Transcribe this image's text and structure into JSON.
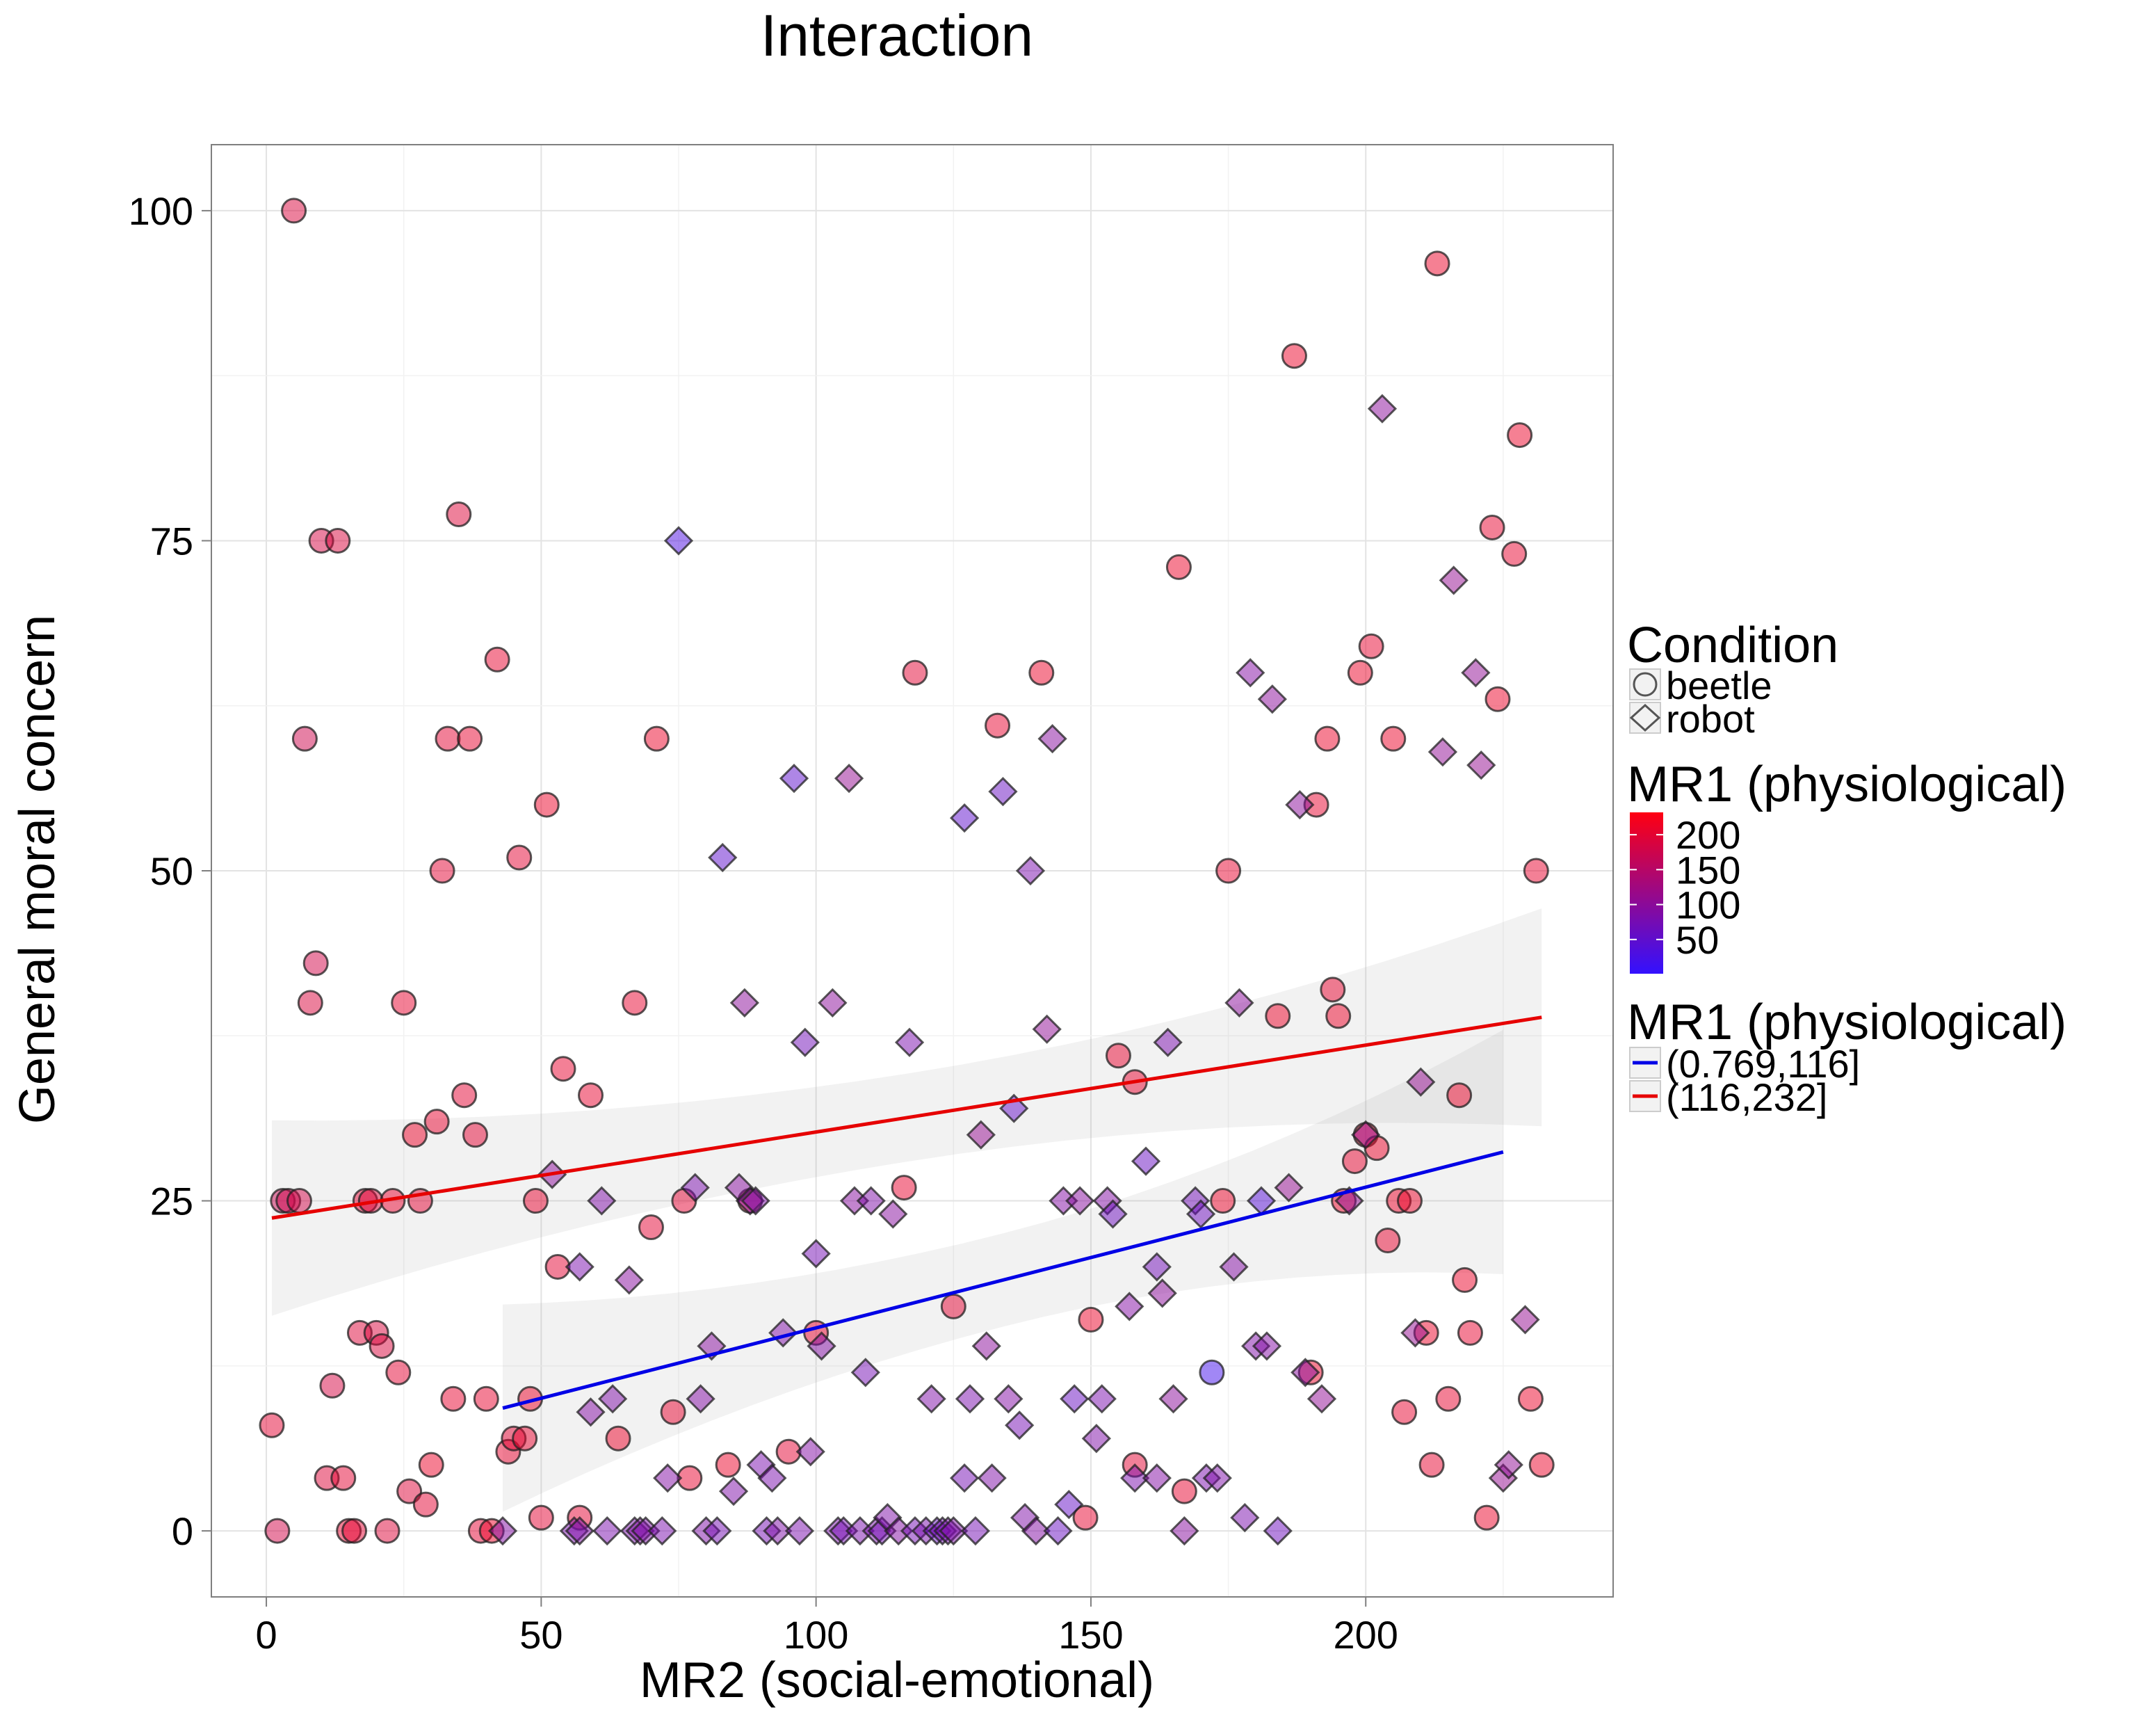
{
  "chart_data": {
    "type": "scatter",
    "title": "Interaction",
    "xlabel": "MR2 (social-emotional)",
    "ylabel": "General moral concern",
    "xlim": [
      -10,
      245
    ],
    "ylim": [
      -5,
      105
    ],
    "xticks": [
      0,
      50,
      100,
      150,
      200
    ],
    "yticks": [
      0,
      25,
      50,
      75,
      100
    ],
    "grid": true,
    "legend_position": "right",
    "legends": {
      "shape": {
        "title": "Condition",
        "entries": [
          {
            "label": "beetle",
            "shape": "circle"
          },
          {
            "label": "robot",
            "shape": "diamond"
          }
        ]
      },
      "color": {
        "title": "MR1 (physiological)",
        "low_color": "#3311ff",
        "high_color": "#ff0011",
        "range": [
          1,
          232
        ],
        "ticks": [
          {
            "label": "200",
            "value": 200
          },
          {
            "label": "150",
            "value": 150
          },
          {
            "label": "100",
            "value": 100
          },
          {
            "label": "50",
            "value": 50
          }
        ]
      },
      "lines": {
        "title": "MR1 (physiological)",
        "entries": [
          {
            "label": "(0.769,116]",
            "color": "#0000e6"
          },
          {
            "label": "(116,232]",
            "color": "#e60000"
          }
        ]
      }
    },
    "series": [
      {
        "name": "beetle",
        "shape": "circle",
        "points": [
          [
            1,
            8,
            200
          ],
          [
            2,
            0,
            180
          ],
          [
            3,
            25,
            170
          ],
          [
            4,
            25,
            175
          ],
          [
            6,
            25,
            180
          ],
          [
            5,
            100,
            190
          ],
          [
            7,
            60,
            175
          ],
          [
            8,
            40,
            190
          ],
          [
            9,
            43,
            180
          ],
          [
            10,
            75,
            185
          ],
          [
            13,
            75,
            190
          ],
          [
            11,
            4,
            195
          ],
          [
            12,
            11,
            185
          ],
          [
            14,
            4,
            200
          ],
          [
            15,
            0,
            205
          ],
          [
            16,
            0,
            200
          ],
          [
            17,
            15,
            195
          ],
          [
            18,
            25,
            200
          ],
          [
            19,
            25,
            195
          ],
          [
            20,
            15,
            190
          ],
          [
            21,
            14,
            190
          ],
          [
            22,
            0,
            195
          ],
          [
            23,
            25,
            205
          ],
          [
            24,
            12,
            200
          ],
          [
            25,
            40,
            205
          ],
          [
            26,
            3,
            195
          ],
          [
            27,
            30,
            210
          ],
          [
            28,
            25,
            200
          ],
          [
            29,
            2,
            200
          ],
          [
            30,
            5,
            210
          ],
          [
            31,
            31,
            205
          ],
          [
            32,
            50,
            200
          ],
          [
            33,
            60,
            200
          ],
          [
            34,
            10,
            205
          ],
          [
            35,
            77,
            195
          ],
          [
            36,
            33,
            200
          ],
          [
            37,
            60,
            205
          ],
          [
            38,
            30,
            200
          ],
          [
            39,
            0,
            200
          ],
          [
            40,
            10,
            205
          ],
          [
            41,
            0,
            210
          ],
          [
            42,
            66,
            205
          ],
          [
            44,
            6,
            205
          ],
          [
            45,
            7,
            200
          ],
          [
            46,
            51,
            200
          ],
          [
            47,
            7,
            205
          ],
          [
            48,
            10,
            210
          ],
          [
            49,
            25,
            205
          ],
          [
            50,
            1,
            200
          ],
          [
            51,
            55,
            210
          ],
          [
            53,
            20,
            200
          ],
          [
            54,
            35,
            205
          ],
          [
            57,
            1,
            200
          ],
          [
            59,
            33,
            205
          ],
          [
            64,
            7,
            210
          ],
          [
            67,
            40,
            205
          ],
          [
            70,
            23,
            200
          ],
          [
            71,
            60,
            210
          ],
          [
            74,
            9,
            205
          ],
          [
            76,
            25,
            200
          ],
          [
            77,
            4,
            205
          ],
          [
            84,
            5,
            210
          ],
          [
            88,
            25,
            205
          ],
          [
            95,
            6,
            200
          ],
          [
            100,
            15,
            205
          ],
          [
            118,
            65,
            200
          ],
          [
            116,
            26,
            205
          ],
          [
            125,
            17,
            200
          ],
          [
            133,
            61,
            205
          ],
          [
            141,
            65,
            210
          ],
          [
            149,
            1,
            205
          ],
          [
            150,
            16,
            210
          ],
          [
            155,
            36,
            205
          ],
          [
            158,
            34,
            205
          ],
          [
            158,
            5,
            200
          ],
          [
            166,
            73,
            210
          ],
          [
            167,
            3,
            205
          ],
          [
            172,
            12,
            20
          ],
          [
            174,
            25,
            210
          ],
          [
            175,
            50,
            205
          ],
          [
            184,
            39,
            210
          ],
          [
            187,
            89,
            210
          ],
          [
            190,
            12,
            210
          ],
          [
            191,
            55,
            205
          ],
          [
            193,
            60,
            210
          ],
          [
            194,
            41,
            205
          ],
          [
            195,
            39,
            210
          ],
          [
            196,
            25,
            210
          ],
          [
            198,
            28,
            205
          ],
          [
            199,
            65,
            210
          ],
          [
            200,
            30,
            210
          ],
          [
            201,
            67,
            205
          ],
          [
            202,
            29,
            210
          ],
          [
            204,
            22,
            205
          ],
          [
            205,
            60,
            210
          ],
          [
            206,
            25,
            210
          ],
          [
            207,
            9,
            205
          ],
          [
            208,
            25,
            210
          ],
          [
            211,
            15,
            210
          ],
          [
            212,
            5,
            205
          ],
          [
            213,
            96,
            210
          ],
          [
            215,
            10,
            205
          ],
          [
            217,
            33,
            210
          ],
          [
            218,
            19,
            210
          ],
          [
            219,
            15,
            205
          ],
          [
            222,
            1,
            210
          ],
          [
            223,
            76,
            205
          ],
          [
            224,
            63,
            210
          ],
          [
            227,
            74,
            205
          ],
          [
            228,
            83,
            210
          ],
          [
            230,
            10,
            210
          ],
          [
            231,
            50,
            205
          ],
          [
            232,
            5,
            210
          ]
        ]
      },
      {
        "name": "robot",
        "shape": "diamond",
        "points": [
          [
            43,
            0,
            90
          ],
          [
            52,
            27,
            100
          ],
          [
            56,
            0,
            80
          ],
          [
            57,
            0,
            85
          ],
          [
            57,
            20,
            80
          ],
          [
            59,
            9,
            90
          ],
          [
            61,
            25,
            85
          ],
          [
            62,
            0,
            80
          ],
          [
            63,
            10,
            85
          ],
          [
            66,
            19,
            95
          ],
          [
            67,
            0,
            80
          ],
          [
            68,
            0,
            90
          ],
          [
            69,
            0,
            85
          ],
          [
            72,
            0,
            80
          ],
          [
            73,
            4,
            90
          ],
          [
            75,
            75,
            30
          ],
          [
            78,
            26,
            80
          ],
          [
            79,
            10,
            90
          ],
          [
            80,
            0,
            85
          ],
          [
            81,
            14,
            95
          ],
          [
            82,
            0,
            75
          ],
          [
            83,
            51,
            50
          ],
          [
            85,
            3,
            85
          ],
          [
            86,
            26,
            95
          ],
          [
            87,
            40,
            100
          ],
          [
            88,
            25,
            90
          ],
          [
            89,
            25,
            85
          ],
          [
            90,
            5,
            80
          ],
          [
            91,
            0,
            75
          ],
          [
            92,
            4,
            80
          ],
          [
            94,
            15,
            85
          ],
          [
            93,
            0,
            85
          ],
          [
            96,
            57,
            50
          ],
          [
            97,
            0,
            80
          ],
          [
            98,
            37,
            70
          ],
          [
            99,
            6,
            90
          ],
          [
            100,
            21,
            75
          ],
          [
            101,
            14,
            90
          ],
          [
            103,
            40,
            100
          ],
          [
            104,
            0,
            80
          ],
          [
            105,
            0,
            75
          ],
          [
            106,
            57,
            110
          ],
          [
            107,
            25,
            95
          ],
          [
            108,
            0,
            80
          ],
          [
            109,
            12,
            75
          ],
          [
            110,
            25,
            85
          ],
          [
            111,
            0,
            80
          ],
          [
            112,
            0,
            75
          ],
          [
            113,
            1,
            85
          ],
          [
            114,
            24,
            95
          ],
          [
            115,
            0,
            90
          ],
          [
            117,
            37,
            80
          ],
          [
            118,
            0,
            75
          ],
          [
            120,
            0,
            80
          ],
          [
            121,
            10,
            85
          ],
          [
            122,
            0,
            60
          ],
          [
            123,
            0,
            75
          ],
          [
            124,
            0,
            80
          ],
          [
            125,
            0,
            85
          ],
          [
            127,
            54,
            50
          ],
          [
            127,
            4,
            75
          ],
          [
            128,
            10,
            80
          ],
          [
            129,
            0,
            75
          ],
          [
            130,
            30,
            110
          ],
          [
            131,
            14,
            100
          ],
          [
            132,
            4,
            85
          ],
          [
            134,
            56,
            60
          ],
          [
            135,
            10,
            90
          ],
          [
            136,
            32,
            55
          ],
          [
            137,
            8,
            75
          ],
          [
            138,
            1,
            85
          ],
          [
            139,
            50,
            80
          ],
          [
            140,
            0,
            90
          ],
          [
            142,
            38,
            105
          ],
          [
            143,
            60,
            95
          ],
          [
            144,
            0,
            60
          ],
          [
            145,
            25,
            90
          ],
          [
            146,
            2,
            55
          ],
          [
            147,
            10,
            60
          ],
          [
            148,
            25,
            95
          ],
          [
            151,
            7,
            85
          ],
          [
            152,
            10,
            80
          ],
          [
            153,
            25,
            90
          ],
          [
            154,
            24,
            65
          ],
          [
            157,
            17,
            90
          ],
          [
            158,
            4,
            80
          ],
          [
            160,
            28,
            60
          ],
          [
            162,
            4,
            90
          ],
          [
            162,
            20,
            70
          ],
          [
            163,
            18,
            100
          ],
          [
            164,
            37,
            80
          ],
          [
            165,
            10,
            100
          ],
          [
            167,
            0,
            95
          ],
          [
            169,
            25,
            70
          ],
          [
            170,
            24,
            65
          ],
          [
            171,
            4,
            80
          ],
          [
            173,
            4,
            85
          ],
          [
            176,
            20,
            90
          ],
          [
            177,
            40,
            100
          ],
          [
            178,
            1,
            80
          ],
          [
            179,
            65,
            90
          ],
          [
            180,
            14,
            85
          ],
          [
            181,
            25,
            40
          ],
          [
            182,
            14,
            90
          ],
          [
            183,
            63,
            100
          ],
          [
            184,
            0,
            65
          ],
          [
            186,
            26,
            110
          ],
          [
            188,
            55,
            100
          ],
          [
            189,
            12,
            95
          ],
          [
            192,
            10,
            105
          ],
          [
            197,
            25,
            105
          ],
          [
            200,
            30,
            110
          ],
          [
            203,
            85,
            100
          ],
          [
            209,
            15,
            110
          ],
          [
            210,
            34,
            110
          ],
          [
            214,
            59,
            105
          ],
          [
            216,
            72,
            110
          ],
          [
            220,
            65,
            105
          ],
          [
            221,
            58,
            110
          ],
          [
            225,
            4,
            110
          ],
          [
            226,
            5,
            105
          ],
          [
            229,
            16,
            110
          ]
        ]
      }
    ],
    "trend_lines": [
      {
        "name": "(0.769,116]",
        "color": "#0000e6",
        "x": [
          43,
          225
        ],
        "y": [
          9.3,
          28.7
        ],
        "band_lower": [
          1.5,
          19.5
        ],
        "band_upper": [
          17.2,
          38.0
        ]
      },
      {
        "name": "(116,232]",
        "color": "#e60000",
        "x": [
          1,
          232
        ],
        "y": [
          23.7,
          38.9
        ],
        "band_lower": [
          16.3,
          30.6
        ],
        "band_upper": [
          31.1,
          47.1
        ]
      }
    ]
  }
}
